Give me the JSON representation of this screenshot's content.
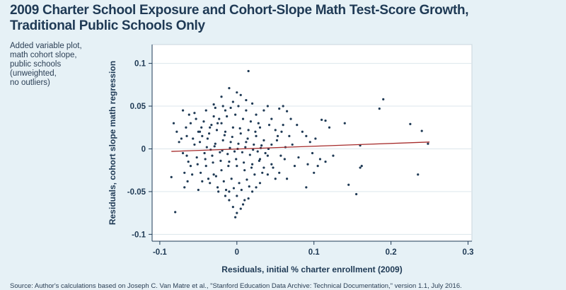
{
  "chart_data": {
    "type": "scatter",
    "title_lines": [
      "2009 Charter School Exposure and Cohort-Slope Math Test-Score Growth,",
      "Traditional Public Schools Only"
    ],
    "note_lines": [
      "Added variable plot,",
      "math cohort slope,",
      "public schools",
      "(unweighted,",
      "no outliers)"
    ],
    "xlabel": "Residuals, initial % charter enrollment (2009)",
    "ylabel": "Residuals, cohort slope math regression",
    "xlim": [
      -0.11,
      0.305
    ],
    "ylim": [
      -0.108,
      0.122
    ],
    "xticks": [
      -0.1,
      0,
      0.1,
      0.2,
      0.3
    ],
    "yticks": [
      -0.1,
      -0.05,
      0,
      0.05,
      0.1
    ],
    "xtick_labels": [
      "-0.1",
      "0",
      "0.1",
      "0.2",
      "0.3"
    ],
    "ytick_labels": [
      "-0.1",
      "-0.05",
      "0",
      "0.05",
      "0.1"
    ],
    "grid": true,
    "marker_color": "#1f3a55",
    "fit_color": "#a52a2a",
    "fit_line": {
      "x": [
        -0.085,
        0.25
      ],
      "y": [
        -0.003,
        0.008
      ]
    },
    "points": [
      [
        0.015,
        0.091
      ],
      [
        -0.01,
        0.071
      ],
      [
        0.0,
        0.066
      ],
      [
        0.005,
        0.063
      ],
      [
        -0.02,
        0.061
      ],
      [
        0.012,
        0.057
      ],
      [
        -0.005,
        0.055
      ],
      [
        0.02,
        0.053
      ],
      [
        -0.03,
        0.052
      ],
      [
        0.04,
        0.05
      ],
      [
        0.06,
        0.05
      ],
      [
        0.055,
        0.047
      ],
      [
        0.065,
        0.044
      ],
      [
        0.19,
        0.058
      ],
      [
        0.185,
        0.047
      ],
      [
        0.225,
        0.029
      ],
      [
        0.24,
        0.021
      ],
      [
        0.248,
        0.006
      ],
      [
        0.235,
        -0.03
      ],
      [
        0.16,
        0.004
      ],
      [
        0.12,
        0.025
      ],
      [
        0.14,
        0.03
      ],
      [
        0.11,
        0.034
      ],
      [
        0.115,
        0.033
      ],
      [
        0.145,
        -0.042
      ],
      [
        0.155,
        -0.053
      ],
      [
        0.162,
        -0.02
      ],
      [
        0.16,
        -0.022
      ],
      [
        0.09,
        -0.045
      ],
      [
        0.1,
        -0.028
      ],
      [
        0.105,
        -0.02
      ],
      [
        0.115,
        -0.015
      ],
      [
        0.125,
        -0.008
      ],
      [
        0.085,
        0.02
      ],
      [
        0.09,
        0.015
      ],
      [
        0.078,
        0.028
      ],
      [
        0.07,
        0.035
      ],
      [
        0.08,
        -0.01
      ],
      [
        0.075,
        -0.02
      ],
      [
        0.065,
        -0.035
      ],
      [
        -0.08,
        -0.074
      ],
      [
        -0.085,
        -0.033
      ],
      [
        -0.082,
        0.03
      ],
      [
        -0.078,
        0.02
      ],
      [
        -0.075,
        0.008
      ],
      [
        -0.07,
        0.045
      ],
      [
        -0.068,
        -0.045
      ],
      [
        -0.065,
        -0.008
      ],
      [
        -0.062,
        0.04
      ],
      [
        -0.06,
        -0.02
      ],
      [
        -0.055,
        0.042
      ],
      [
        -0.05,
        -0.048
      ],
      [
        -0.048,
        0.02
      ],
      [
        -0.045,
        -0.038
      ],
      [
        -0.04,
        0.045
      ],
      [
        -0.035,
        -0.04
      ],
      [
        -0.03,
        0.038
      ],
      [
        -0.025,
        -0.045
      ],
      [
        -0.02,
        0.03
      ],
      [
        -0.015,
        -0.055
      ],
      [
        -0.01,
        -0.06
      ],
      [
        -0.005,
        -0.068
      ],
      [
        0.0,
        -0.075
      ],
      [
        0.005,
        -0.07
      ],
      [
        0.01,
        -0.06
      ],
      [
        0.015,
        -0.058
      ],
      [
        0.02,
        -0.05
      ],
      [
        0.025,
        -0.045
      ],
      [
        0.03,
        -0.04
      ],
      [
        -0.01,
        -0.05
      ],
      [
        0.0,
        -0.055
      ],
      [
        0.008,
        -0.065
      ],
      [
        -0.002,
        -0.08
      ],
      [
        0.035,
        0.045
      ],
      [
        0.025,
        0.04
      ],
      [
        -0.015,
        0.045
      ],
      [
        0.045,
        0.035
      ],
      [
        0.05,
        -0.035
      ],
      [
        0.055,
        -0.028
      ],
      [
        0.058,
        0.02
      ],
      [
        0.06,
        0.028
      ],
      [
        0.045,
        -0.018
      ],
      [
        0.052,
        0.01
      ],
      [
        0.068,
        0.015
      ],
      [
        0.072,
        0.005
      ],
      [
        0.062,
        -0.012
      ],
      [
        0.05,
        0.022
      ],
      [
        0.04,
        -0.03
      ],
      [
        0.035,
        -0.022
      ],
      [
        0.03,
        0.025
      ],
      [
        -0.045,
        0.015
      ],
      [
        -0.05,
        0.02
      ],
      [
        -0.04,
        -0.02
      ],
      [
        -0.035,
        0.025
      ],
      [
        -0.03,
        -0.03
      ],
      [
        -0.025,
        0.03
      ],
      [
        -0.02,
        -0.025
      ],
      [
        -0.015,
        0.02
      ],
      [
        -0.01,
        -0.015
      ],
      [
        -0.005,
        0.025
      ],
      [
        0.0,
        -0.02
      ],
      [
        0.005,
        0.018
      ],
      [
        0.01,
        -0.025
      ],
      [
        0.015,
        0.022
      ],
      [
        0.02,
        -0.018
      ],
      [
        0.025,
        0.015
      ],
      [
        0.03,
        -0.012
      ],
      [
        0.035,
        0.01
      ],
      [
        0.04,
        -0.008
      ],
      [
        0.045,
        0.005
      ],
      [
        -0.055,
        0.005
      ],
      [
        -0.052,
        -0.01
      ],
      [
        -0.048,
        0.008
      ],
      [
        -0.042,
        -0.005
      ],
      [
        -0.038,
        0.012
      ],
      [
        -0.032,
        -0.008
      ],
      [
        -0.028,
        0.006
      ],
      [
        -0.022,
        -0.004
      ],
      [
        -0.018,
        0.01
      ],
      [
        -0.012,
        -0.006
      ],
      [
        -0.008,
        0.008
      ],
      [
        -0.003,
        -0.003
      ],
      [
        0.002,
        0.006
      ],
      [
        0.007,
        -0.004
      ],
      [
        0.012,
        0.008
      ],
      [
        0.017,
        -0.007
      ],
      [
        0.022,
        0.005
      ],
      [
        0.027,
        -0.003
      ],
      [
        0.032,
        0.004
      ],
      [
        0.037,
        -0.005
      ],
      [
        -0.06,
        0.03
      ],
      [
        -0.058,
        -0.03
      ],
      [
        -0.053,
        0.035
      ],
      [
        -0.047,
        -0.028
      ],
      [
        -0.043,
        0.032
      ],
      [
        -0.037,
        -0.035
      ],
      [
        -0.033,
        0.028
      ],
      [
        -0.027,
        -0.032
      ],
      [
        -0.023,
        0.035
      ],
      [
        -0.017,
        -0.038
      ],
      [
        -0.013,
        0.038
      ],
      [
        -0.007,
        -0.035
      ],
      [
        -0.002,
        0.04
      ],
      [
        0.003,
        -0.04
      ],
      [
        0.008,
        0.035
      ],
      [
        0.013,
        -0.036
      ],
      [
        0.018,
        0.032
      ],
      [
        0.023,
        -0.03
      ],
      [
        0.028,
        0.03
      ],
      [
        0.033,
        -0.028
      ],
      [
        -0.065,
        0.015
      ],
      [
        -0.063,
        -0.015
      ],
      [
        -0.057,
        0.012
      ],
      [
        -0.051,
        -0.018
      ],
      [
        -0.046,
        0.025
      ],
      [
        -0.041,
        -0.012
      ],
      [
        -0.036,
        0.018
      ],
      [
        -0.031,
        -0.016
      ],
      [
        -0.026,
        0.022
      ],
      [
        -0.021,
        -0.014
      ],
      [
        -0.016,
        0.016
      ],
      [
        -0.011,
        -0.02
      ],
      [
        -0.006,
        0.014
      ],
      [
        -0.001,
        -0.012
      ],
      [
        0.004,
        0.024
      ],
      [
        0.009,
        -0.016
      ],
      [
        0.014,
        0.012
      ],
      [
        0.019,
        -0.022
      ],
      [
        0.024,
        0.02
      ],
      [
        0.029,
        -0.014
      ],
      [
        -0.07,
        -0.005
      ],
      [
        -0.072,
        0.012
      ],
      [
        -0.068,
        -0.028
      ],
      [
        -0.066,
        0.025
      ],
      [
        -0.064,
        -0.038
      ],
      [
        0.042,
        0.028
      ],
      [
        0.047,
        -0.022
      ],
      [
        0.053,
        0.015
      ],
      [
        0.057,
        -0.008
      ],
      [
        0.063,
        0.002
      ],
      [
        -0.028,
        0.048
      ],
      [
        -0.018,
        0.05
      ],
      [
        -0.008,
        0.048
      ],
      [
        0.002,
        0.05
      ],
      [
        0.012,
        0.045
      ],
      [
        -0.024,
        -0.05
      ],
      [
        -0.014,
        -0.048
      ],
      [
        -0.004,
        -0.046
      ],
      [
        0.006,
        -0.048
      ],
      [
        0.016,
        -0.044
      ],
      [
        -0.039,
        0.002
      ],
      [
        -0.034,
        -0.001
      ],
      [
        -0.029,
        0.003
      ],
      [
        -0.019,
        -0.002
      ],
      [
        -0.009,
        0.001
      ],
      [
        0.001,
        0.0
      ],
      [
        0.011,
        0.002
      ],
      [
        0.021,
        -0.001
      ],
      [
        0.031,
        0.001
      ],
      [
        0.041,
        0.0
      ],
      [
        0.095,
        0.008
      ],
      [
        0.098,
        -0.005
      ],
      [
        0.102,
        0.012
      ],
      [
        0.108,
        -0.012
      ],
      [
        0.092,
        -0.018
      ]
    ]
  },
  "source": "Source: Author's calculations based on Joseph C. Van Matre et al., \"Stanford Education Data Archive: Technical Documentation,\" version 1.1, July 2016."
}
